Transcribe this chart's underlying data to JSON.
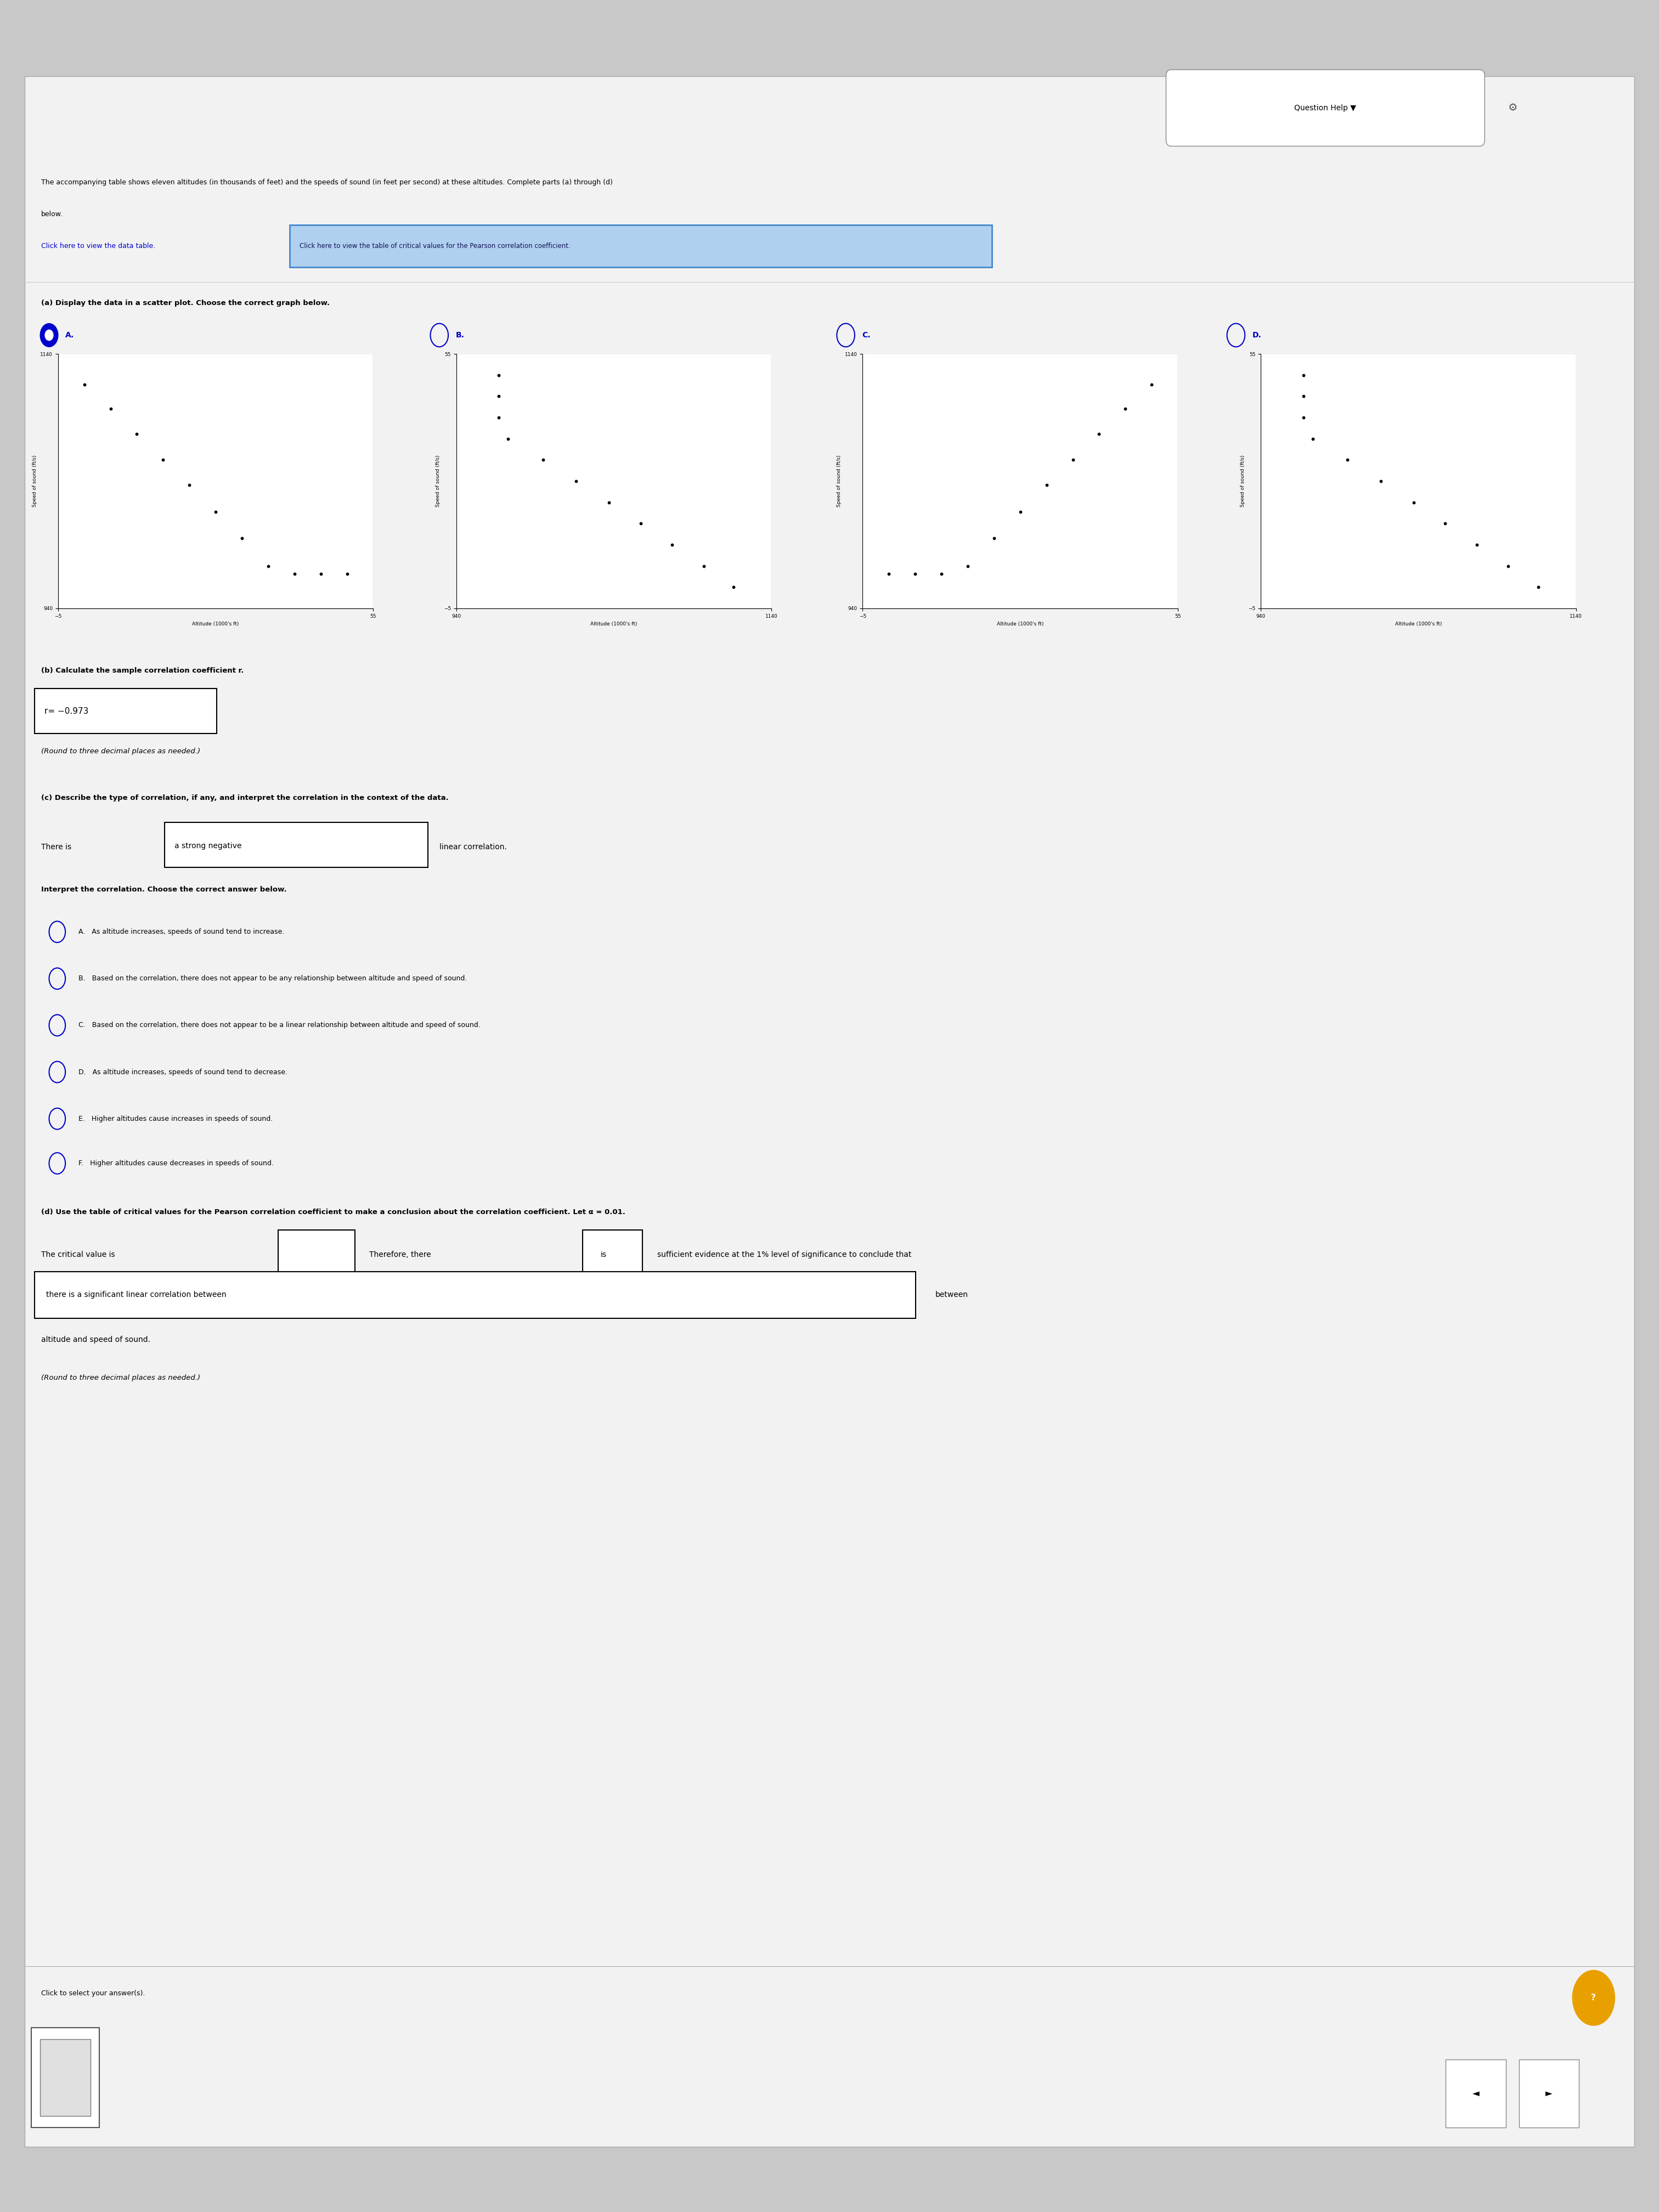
{
  "bg_color": "#d8d8d8",
  "content_bg": "#f0f0f0",
  "title_line1": "The accompanying table shows eleven altitudes (in thousands of feet) and the speeds of sound (in feet per second) at these altitudes. Complete parts (a) through (d)",
  "title_line2": "below.",
  "link1": "Click here to view the data table.",
  "link2": "Click here to view the table of critical values for the Pearson correlation coefficient.",
  "part_a_text": "(a) Display the data in a scatter plot. Choose the correct graph below.",
  "part_b_text": "(b) Calculate the sample correlation coefficient r.",
  "r_value": "r= −0.973",
  "round_note_b": "(Round to three decimal places as needed.)",
  "part_c_text": "(c) Describe the type of correlation, if any, and interpret the correlation in the context of the data.",
  "there_is_text": "There is",
  "there_is_answer": "a strong negative",
  "there_is_end": "linear correlation.",
  "interpret_text": "Interpret the correlation. Choose the correct answer below.",
  "option_A": "A.   As altitude increases, speeds of sound tend to increase.",
  "option_B": "B.   Based on the correlation, there does not appear to be any relationship between altitude and speed of sound.",
  "option_C": "C.   Based on the correlation, there does not appear to be a linear relationship between altitude and speed of sound.",
  "option_D": "D.   As altitude increases, speeds of sound tend to decrease.",
  "option_E": "E.   Higher altitudes cause increases in speeds of sound.",
  "option_F": "F.   Higher altitudes cause decreases in speeds of sound.",
  "part_d_text": "(d) Use the table of critical values for the Pearson correlation coefficient to make a conclusion about the correlation coefficient. Let α = 0.01.",
  "critical_text1": "The critical value is",
  "critical_text2": "Therefore, there",
  "is_text": "is",
  "sufficient_text": "sufficient evidence at the 1% level of significance to conclude that",
  "conclusion_answer": "there is a significant linear correlation between",
  "conclusion_end": "altitude and speed of sound.",
  "round_note_d": "(Round to three decimal places as needed.)",
  "click_select": "Click to select your answer(s).",
  "question_help": "Question Help ▼",
  "graph_A_data_x": [
    0,
    5,
    10,
    15,
    20,
    25,
    30,
    35,
    40,
    45,
    50
  ],
  "graph_A_data_y": [
    1116,
    1097,
    1077,
    1057,
    1037,
    1016,
    995,
    973,
    967,
    967,
    967
  ],
  "graph_B_data_x": [
    1116,
    1097,
    1077,
    1057,
    1037,
    1016,
    995,
    973,
    967,
    967,
    967
  ],
  "graph_B_data_y": [
    0,
    5,
    10,
    15,
    20,
    25,
    30,
    35,
    40,
    45,
    50
  ],
  "graph_C_data_x": [
    0,
    5,
    10,
    15,
    20,
    25,
    30,
    35,
    40,
    45,
    50
  ],
  "graph_C_data_y": [
    967,
    967,
    967,
    973,
    995,
    1016,
    1037,
    1057,
    1077,
    1097,
    1116
  ],
  "graph_D_data_x": [
    1116,
    1097,
    1077,
    1057,
    1037,
    1016,
    995,
    973,
    967,
    967,
    967
  ],
  "graph_D_data_y": [
    0,
    5,
    10,
    15,
    20,
    25,
    30,
    35,
    40,
    45,
    50
  ]
}
